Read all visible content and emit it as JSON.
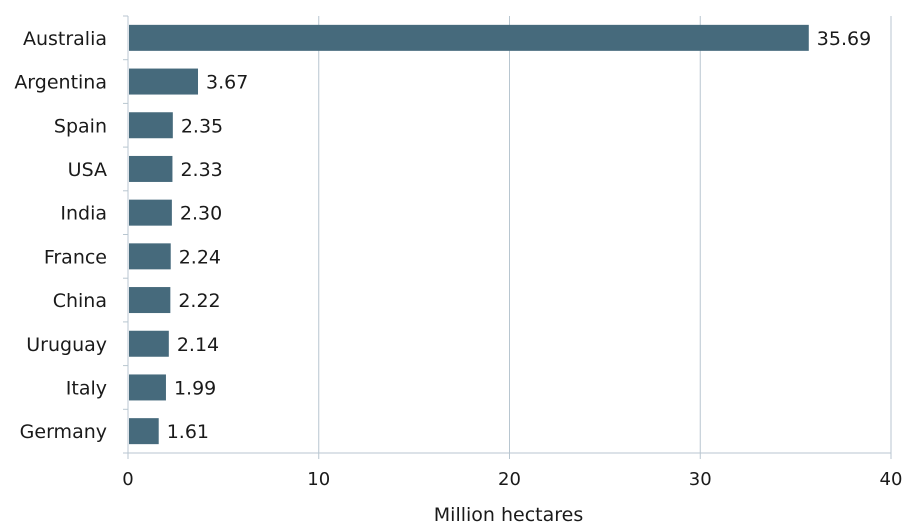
{
  "chart_data": {
    "type": "bar",
    "orientation": "horizontal",
    "title": "",
    "xlabel": "Million hectares",
    "ylabel": "",
    "categories": [
      "Australia",
      "Argentina",
      "Spain",
      "USA",
      "India",
      "France",
      "China",
      "Uruguay",
      "Italy",
      "Germany"
    ],
    "values": [
      35.69,
      3.67,
      2.35,
      2.33,
      2.3,
      2.24,
      2.22,
      2.14,
      1.99,
      1.61
    ],
    "value_labels": [
      "35.69",
      "3.67",
      "2.35",
      "2.33",
      "2.30",
      "2.24",
      "2.22",
      "2.14",
      "1.99",
      "1.61"
    ],
    "xlim": [
      0,
      40
    ],
    "xticks": [
      0,
      10,
      20,
      30,
      40
    ],
    "grid": "vertical",
    "legend": "none",
    "bar_color": "#466a7c",
    "grid_color": "#b8c6d0"
  }
}
